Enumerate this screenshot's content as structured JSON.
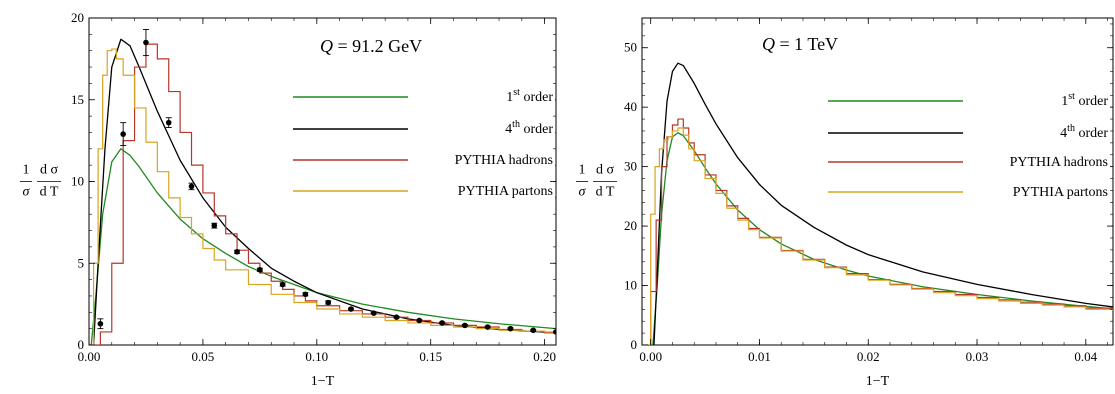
{
  "chart_data": [
    {
      "type": "line",
      "annotation": "Q = 91.2 GeV",
      "xlabel": "1−T",
      "ylabel": "1/σ dσ/dT",
      "xlim": [
        0,
        0.205
      ],
      "ylim": [
        0,
        20
      ],
      "xticks": [
        "0.00",
        "0.05",
        "0.10",
        "0.15",
        "0.20"
      ],
      "xtick_values": [
        0,
        0.05,
        0.1,
        0.15,
        0.2
      ],
      "yticks": [
        "0",
        "5",
        "10",
        "15",
        "20"
      ],
      "ytick_values": [
        0,
        5,
        10,
        15,
        20
      ],
      "legend_position": "right",
      "series": [
        {
          "name": "1st order",
          "label_main": "1",
          "label_sup": "st",
          "label_rest": " order",
          "style": "line",
          "color": "#1f8a1f",
          "x": [
            0.001,
            0.003,
            0.006,
            0.01,
            0.014,
            0.018,
            0.022,
            0.03,
            0.04,
            0.05,
            0.06,
            0.07,
            0.08,
            0.09,
            0.1,
            0.12,
            0.14,
            0.16,
            0.18,
            0.205
          ],
          "y": [
            0,
            3,
            8,
            11.2,
            12.0,
            11.6,
            10.9,
            9.3,
            7.7,
            6.5,
            5.6,
            4.8,
            4.2,
            3.7,
            3.2,
            2.5,
            2.0,
            1.6,
            1.3,
            1.0
          ]
        },
        {
          "name": "4th order",
          "label_main": "4",
          "label_sup": "th",
          "label_rest": " order",
          "style": "line",
          "color": "#000000",
          "x": [
            0.002,
            0.004,
            0.007,
            0.01,
            0.014,
            0.018,
            0.022,
            0.03,
            0.04,
            0.05,
            0.06,
            0.07,
            0.08,
            0.09,
            0.1,
            0.12,
            0.14,
            0.16,
            0.18,
            0.205
          ],
          "y": [
            0,
            5,
            12,
            17,
            18.7,
            18.3,
            17.0,
            14.3,
            11.3,
            9.0,
            7.2,
            5.9,
            4.7,
            3.9,
            3.2,
            2.2,
            1.6,
            1.2,
            0.95,
            0.75
          ]
        },
        {
          "name": "PYTHIA hadrons",
          "label_main": "PYTHIA hadrons",
          "label_sup": "",
          "label_rest": "",
          "style": "step",
          "color": "#b5372b",
          "x": [
            0,
            0.005,
            0.01,
            0.015,
            0.02,
            0.025,
            0.03,
            0.035,
            0.04,
            0.045,
            0.05,
            0.055,
            0.06,
            0.065,
            0.07,
            0.075,
            0.08,
            0.085,
            0.09,
            0.095,
            0.1,
            0.11,
            0.12,
            0.13,
            0.14,
            0.15,
            0.16,
            0.17,
            0.18,
            0.19,
            0.2,
            0.205
          ],
          "y": [
            0,
            0.8,
            5,
            12.5,
            17,
            18.4,
            17.5,
            15.5,
            13,
            11,
            9.3,
            7.9,
            6.8,
            5.8,
            5.0,
            4.4,
            3.9,
            3.4,
            3.0,
            2.7,
            2.4,
            2.1,
            1.9,
            1.7,
            1.5,
            1.35,
            1.2,
            1.1,
            0.95,
            0.85,
            0.75,
            0.7
          ]
        },
        {
          "name": "PYTHIA partons",
          "label_main": "PYTHIA partons",
          "label_sup": "",
          "label_rest": "",
          "style": "step",
          "color": "#d9a421",
          "x": [
            0,
            0.002,
            0.004,
            0.006,
            0.008,
            0.01,
            0.012,
            0.015,
            0.02,
            0.025,
            0.03,
            0.035,
            0.04,
            0.045,
            0.05,
            0.055,
            0.06,
            0.07,
            0.08,
            0.09,
            0.1,
            0.11,
            0.12,
            0.13,
            0.14,
            0.15,
            0.16,
            0.17,
            0.18,
            0.19,
            0.2,
            0.205
          ],
          "y": [
            0,
            5,
            12,
            16.5,
            18,
            18.1,
            17.5,
            16.5,
            14.5,
            12.4,
            10.6,
            9.0,
            7.8,
            6.8,
            5.9,
            5.2,
            4.6,
            3.7,
            3.1,
            2.6,
            2.2,
            1.9,
            1.7,
            1.5,
            1.35,
            1.2,
            1.1,
            1.0,
            0.9,
            0.85,
            0.8,
            0.75
          ]
        },
        {
          "name": "data",
          "style": "points",
          "color": "#000000",
          "x": [
            0.005,
            0.015,
            0.025,
            0.035,
            0.045,
            0.055,
            0.065,
            0.075,
            0.085,
            0.095,
            0.105,
            0.115,
            0.125,
            0.135,
            0.145,
            0.155,
            0.165,
            0.175,
            0.185,
            0.195,
            0.205
          ],
          "y": [
            1.3,
            12.9,
            18.5,
            13.6,
            9.7,
            7.3,
            5.7,
            4.6,
            3.7,
            3.1,
            2.6,
            2.2,
            1.95,
            1.7,
            1.5,
            1.35,
            1.2,
            1.1,
            1.0,
            0.9,
            0.8
          ],
          "err": [
            0.3,
            0.7,
            0.8,
            0.3,
            0.2,
            0.15,
            0.1,
            0.1,
            0.1,
            0.1,
            0.1,
            0.05,
            0.05,
            0.05,
            0.05,
            0.05,
            0.05,
            0.05,
            0.05,
            0.05,
            0.05
          ]
        }
      ]
    },
    {
      "type": "line",
      "annotation": "Q = 1 TeV",
      "xlabel": "1−T",
      "ylabel": "1/σ dσ/dT",
      "xlim": [
        -0.0008,
        0.0425
      ],
      "ylim": [
        0,
        55
      ],
      "xticks": [
        "0.00",
        "0.01",
        "0.02",
        "0.03",
        "0.04"
      ],
      "xtick_values": [
        0,
        0.01,
        0.02,
        0.03,
        0.04
      ],
      "yticks": [
        "0",
        "10",
        "20",
        "30",
        "40",
        "50"
      ],
      "ytick_values": [
        0,
        10,
        20,
        30,
        40,
        50
      ],
      "legend_position": "right",
      "series": [
        {
          "name": "1st order",
          "label_main": "1",
          "label_sup": "st",
          "label_rest": " order",
          "style": "line",
          "color": "#1f8a1f",
          "x": [
            0.0002,
            0.0006,
            0.001,
            0.0015,
            0.002,
            0.0025,
            0.003,
            0.004,
            0.005,
            0.006,
            0.008,
            0.01,
            0.012,
            0.015,
            0.018,
            0.02,
            0.025,
            0.03,
            0.035,
            0.04,
            0.0425
          ],
          "y": [
            0,
            10,
            22,
            31,
            35,
            35.7,
            35.2,
            32.7,
            29.8,
            27.1,
            22.7,
            19.4,
            17.0,
            14.4,
            12.6,
            11.6,
            9.8,
            8.5,
            7.4,
            6.5,
            6.1
          ]
        },
        {
          "name": "4th order",
          "label_main": "4",
          "label_sup": "th",
          "label_rest": " order",
          "style": "line",
          "color": "#000000",
          "x": [
            0.0003,
            0.0006,
            0.001,
            0.0015,
            0.002,
            0.0025,
            0.003,
            0.004,
            0.005,
            0.006,
            0.008,
            0.01,
            0.012,
            0.015,
            0.018,
            0.02,
            0.025,
            0.03,
            0.035,
            0.04,
            0.0425
          ],
          "y": [
            0,
            12,
            29,
            41,
            46,
            47.4,
            47,
            44,
            40.5,
            37.2,
            31.5,
            27.0,
            23.5,
            19.8,
            16.8,
            15.2,
            12.3,
            10.2,
            8.5,
            7.0,
            6.4
          ]
        },
        {
          "name": "PYTHIA hadrons",
          "label_main": "PYTHIA hadrons",
          "label_sup": "",
          "label_rest": "",
          "style": "step",
          "color": "#b5372b",
          "x": [
            -0.0005,
            0,
            0.0005,
            0.001,
            0.0015,
            0.002,
            0.0025,
            0.003,
            0.0035,
            0.004,
            0.005,
            0.006,
            0.007,
            0.008,
            0.009,
            0.01,
            0.012,
            0.014,
            0.016,
            0.018,
            0.02,
            0.022,
            0.024,
            0.026,
            0.028,
            0.03,
            0.032,
            0.034,
            0.036,
            0.038,
            0.04,
            0.0425
          ],
          "y": [
            0,
            9,
            21,
            30,
            35,
            37,
            38,
            36.5,
            34,
            32,
            28.6,
            26,
            23.4,
            21.3,
            19.6,
            18.1,
            15.9,
            14.4,
            13.1,
            12.0,
            11.0,
            10.2,
            9.5,
            9.0,
            8.5,
            8.0,
            7.6,
            7.2,
            6.9,
            6.6,
            6.2,
            6.0
          ]
        },
        {
          "name": "PYTHIA partons",
          "label_main": "PYTHIA partons",
          "label_sup": "",
          "label_rest": "",
          "style": "step",
          "color": "#d9a421",
          "x": [
            -0.0005,
            0,
            0.0004,
            0.0008,
            0.0012,
            0.0016,
            0.002,
            0.0025,
            0.003,
            0.0035,
            0.004,
            0.005,
            0.006,
            0.007,
            0.008,
            0.009,
            0.01,
            0.012,
            0.014,
            0.016,
            0.018,
            0.02,
            0.022,
            0.024,
            0.026,
            0.028,
            0.03,
            0.032,
            0.034,
            0.036,
            0.038,
            0.04,
            0.0425
          ],
          "y": [
            0,
            22,
            30,
            33,
            34.5,
            35,
            36,
            36.5,
            35.3,
            33,
            31,
            28.0,
            25.5,
            23.0,
            21.0,
            19.4,
            18.0,
            15.8,
            14.3,
            13.0,
            11.8,
            10.9,
            10.1,
            9.4,
            8.8,
            8.3,
            7.8,
            7.4,
            7.0,
            6.7,
            6.4,
            6.0,
            5.8
          ]
        }
      ]
    }
  ]
}
